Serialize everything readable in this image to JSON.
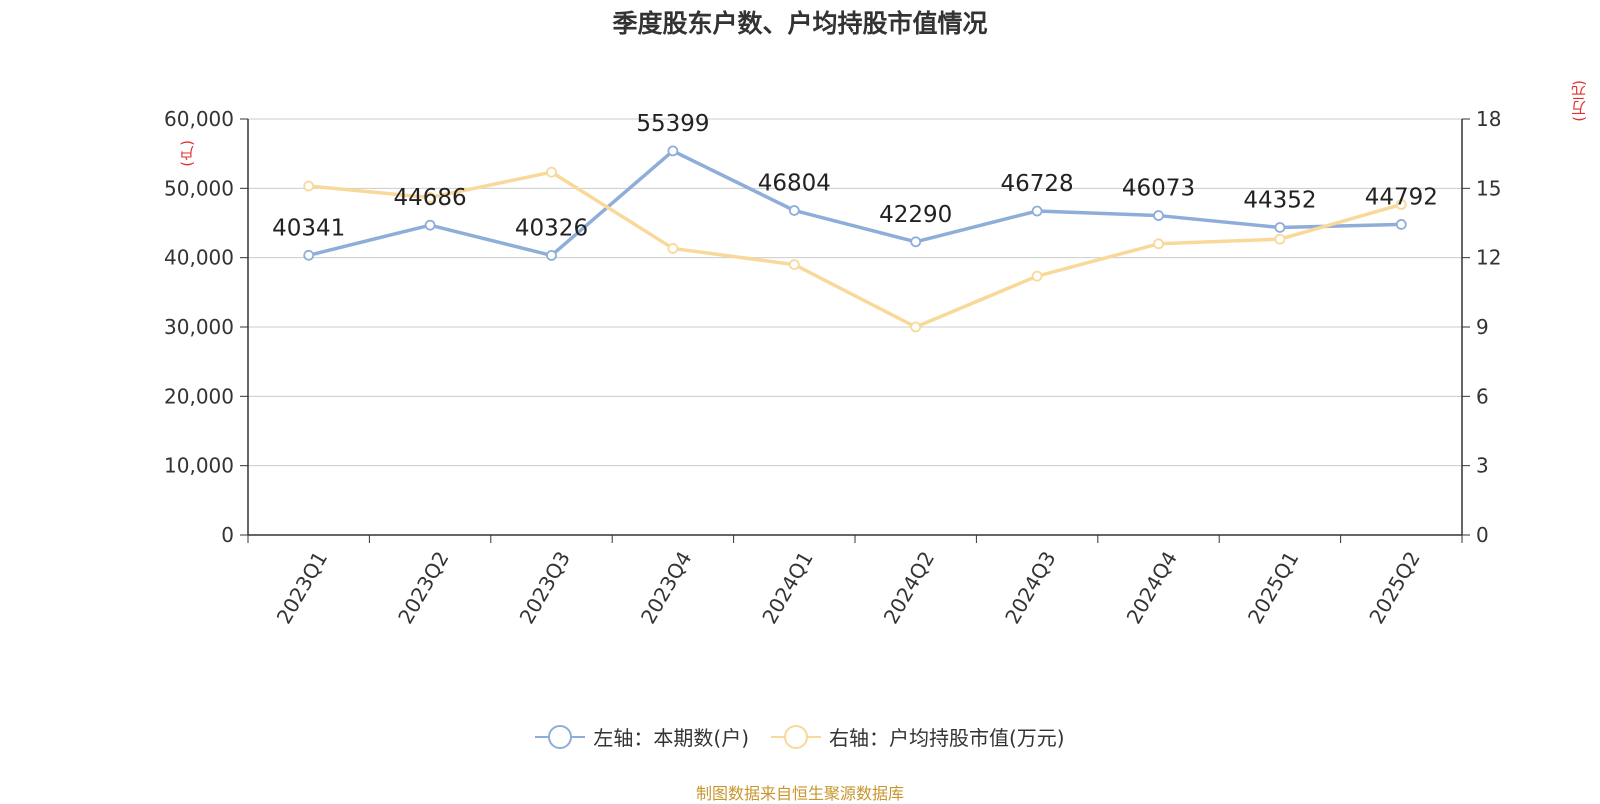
{
  "colors": {
    "series_left": "#8eaed9",
    "series_right": "#f9d99a",
    "unit_label": "#e03030",
    "source": "#c8962e",
    "grid": "#cccccc",
    "axis": "#333333"
  },
  "chart_data": {
    "type": "line",
    "title": "季度股东户数、户均持股市值情况",
    "left_axis_unit": "(户)",
    "right_axis_unit": "(万元)",
    "categories": [
      "2023Q1",
      "2023Q2",
      "2023Q3",
      "2023Q4",
      "2024Q1",
      "2024Q2",
      "2024Q3",
      "2024Q4",
      "2025Q1",
      "2025Q2"
    ],
    "left_axis": {
      "min": 0,
      "max": 60000,
      "ticks": [
        "0",
        "10,000",
        "20,000",
        "30,000",
        "40,000",
        "50,000",
        "60,000"
      ]
    },
    "right_axis": {
      "min": 0,
      "max": 18,
      "ticks": [
        "0",
        "3",
        "6",
        "9",
        "12",
        "15",
        "18"
      ]
    },
    "grid": true,
    "legend_position": "bottom",
    "series": [
      {
        "name": "左轴：本期数(户)",
        "axis": "left",
        "values": [
          40341,
          44686,
          40326,
          55399,
          46804,
          42290,
          46728,
          46073,
          44352,
          44792
        ],
        "labels": [
          "40341",
          "44686",
          "40326",
          "55399",
          "46804",
          "42290",
          "46728",
          "46073",
          "44352",
          "44792"
        ]
      },
      {
        "name": "右轴：户均持股市值(万元)",
        "axis": "right",
        "values": [
          15.1,
          14.6,
          15.7,
          12.4,
          11.7,
          9.0,
          11.2,
          12.6,
          12.8,
          14.3
        ]
      }
    ]
  },
  "source": "制图数据来自恒生聚源数据库"
}
